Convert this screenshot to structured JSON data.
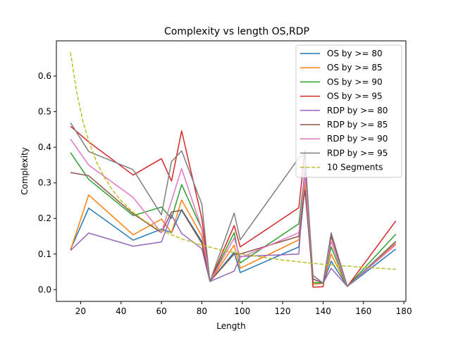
{
  "chart_data": {
    "type": "line",
    "title": "Complexity vs length OS,RDP",
    "xlabel": "Length",
    "ylabel": "Complexity",
    "xlim": [
      8,
      181
    ],
    "ylim": [
      -0.033,
      0.699
    ],
    "xticks": [
      20,
      40,
      60,
      80,
      100,
      120,
      140,
      160,
      180
    ],
    "yticks": [
      0.0,
      0.1,
      0.2,
      0.3,
      0.4,
      0.5,
      0.6
    ],
    "ytick_labels": [
      "0.0",
      "0.1",
      "0.2",
      "0.3",
      "0.4",
      "0.5",
      "0.6"
    ],
    "grid": false,
    "legend_position": "top-right",
    "x": [
      15,
      24,
      46,
      60,
      65,
      70,
      80,
      84,
      96,
      99,
      128,
      131,
      135,
      140,
      144,
      152,
      176
    ],
    "series": [
      {
        "name": "OS by >= 80",
        "color": "#1f77b4",
        "dash": "solid",
        "values": [
          0.113,
          0.229,
          0.139,
          0.17,
          0.16,
          0.225,
          0.135,
          0.023,
          0.105,
          0.048,
          0.12,
          0.29,
          0.02,
          0.018,
          0.08,
          0.009,
          0.114
        ]
      },
      {
        "name": "OS by >= 85",
        "color": "#ff7f0e",
        "dash": "solid",
        "values": [
          0.111,
          0.266,
          0.154,
          0.198,
          0.16,
          0.252,
          0.15,
          0.023,
          0.125,
          0.06,
          0.14,
          0.3,
          0.015,
          0.018,
          0.1,
          0.009,
          0.13
        ]
      },
      {
        "name": "OS by >= 90",
        "color": "#2ca02c",
        "dash": "solid",
        "values": [
          0.385,
          0.31,
          0.208,
          0.232,
          0.2,
          0.295,
          0.17,
          0.023,
          0.16,
          0.075,
          0.185,
          0.33,
          0.02,
          0.018,
          0.12,
          0.009,
          0.156
        ]
      },
      {
        "name": "OS by >= 95",
        "color": "#d62728",
        "dash": "solid",
        "values": [
          0.459,
          0.415,
          0.322,
          0.368,
          0.305,
          0.446,
          0.2,
          0.023,
          0.18,
          0.12,
          0.23,
          0.39,
          0.007,
          0.008,
          0.15,
          0.009,
          0.193
        ]
      },
      {
        "name": "RDP by >= 80",
        "color": "#9467bd",
        "dash": "solid",
        "values": [
          0.11,
          0.159,
          0.122,
          0.134,
          0.21,
          0.158,
          0.115,
          0.023,
          0.052,
          0.093,
          0.1,
          0.35,
          0.03,
          0.018,
          0.06,
          0.009,
          0.135
        ]
      },
      {
        "name": "RDP by >= 85",
        "color": "#8c564b",
        "dash": "solid",
        "values": [
          0.329,
          0.32,
          0.213,
          0.16,
          0.218,
          0.223,
          0.13,
          0.023,
          0.1,
          0.1,
          0.15,
          0.28,
          0.03,
          0.018,
          0.155,
          0.009,
          0.135
        ]
      },
      {
        "name": "RDP by >= 90",
        "color": "#e377c2",
        "dash": "solid",
        "values": [
          0.423,
          0.35,
          0.259,
          0.16,
          0.25,
          0.34,
          0.17,
          0.023,
          0.145,
          0.09,
          0.16,
          0.32,
          0.04,
          0.018,
          0.135,
          0.009,
          0.126
        ]
      },
      {
        "name": "RDP by >= 95",
        "color": "#7f7f7f",
        "dash": "solid",
        "values": [
          0.469,
          0.388,
          0.337,
          0.21,
          0.36,
          0.39,
          0.24,
          0.023,
          0.215,
          0.14,
          0.37,
          0.38,
          0.04,
          0.018,
          0.16,
          0.009,
          0.136
        ]
      }
    ],
    "reference_line": {
      "name": "10 Segments",
      "color": "#bcbd22",
      "dash": "dashed",
      "x": [
        15,
        18,
        21,
        24,
        28,
        32,
        36,
        40,
        46,
        52,
        58,
        64,
        70,
        80,
        90,
        100,
        110,
        120,
        130,
        140,
        150,
        160,
        176
      ],
      "values": [
        0.667,
        0.556,
        0.476,
        0.417,
        0.357,
        0.313,
        0.278,
        0.25,
        0.217,
        0.192,
        0.172,
        0.156,
        0.143,
        0.125,
        0.111,
        0.1,
        0.091,
        0.083,
        0.077,
        0.071,
        0.067,
        0.063,
        0.057
      ]
    }
  }
}
